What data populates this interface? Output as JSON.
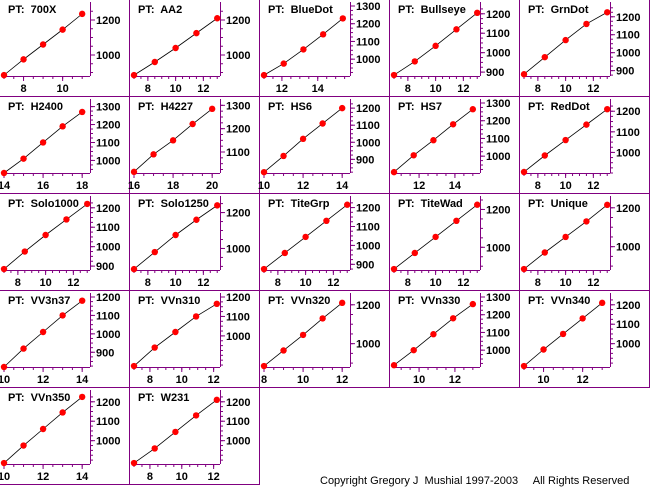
{
  "copyright": "Copyright Gregory J  Mushial 1997-2003     All Rights Reserved",
  "colors": {
    "divider": "#800080",
    "point": "#ff0000",
    "line": "#000000",
    "axis": "#800080",
    "text": "#000000"
  },
  "chart_data": [
    {
      "type": "line",
      "title": "PT:  700X",
      "xticks": [
        8,
        10
      ],
      "yticks": [
        1000,
        1200
      ],
      "xlim": [
        7,
        11.4
      ],
      "ylim": [
        880,
        1280
      ],
      "series": [
        {
          "x": [
            7,
            8,
            9,
            10,
            11
          ],
          "y": [
            885,
            975,
            1060,
            1145,
            1235
          ]
        }
      ]
    },
    {
      "type": "line",
      "title": "PT:  AA2",
      "xticks": [
        8,
        10,
        12
      ],
      "yticks": [
        1000,
        1200
      ],
      "xlim": [
        7,
        13.2
      ],
      "ylim": [
        880,
        1280
      ],
      "series": [
        {
          "x": [
            7,
            8.5,
            10,
            11.5,
            13
          ],
          "y": [
            885,
            960,
            1040,
            1125,
            1210
          ]
        }
      ]
    },
    {
      "type": "line",
      "title": "PT:  BlueDot",
      "xticks": [
        12,
        14
      ],
      "yticks": [
        1000,
        1100,
        1200,
        1300
      ],
      "xlim": [
        11,
        15.8
      ],
      "ylim": [
        905,
        1300
      ],
      "series": [
        {
          "x": [
            11,
            12.1,
            13.2,
            14.3,
            15.4
          ],
          "y": [
            910,
            975,
            1055,
            1140,
            1230
          ]
        }
      ]
    },
    {
      "type": "line",
      "title": "PT:  Bullseye",
      "xticks": [
        8,
        10,
        12
      ],
      "yticks": [
        900,
        1000,
        1100,
        1200
      ],
      "xlim": [
        7,
        13.2
      ],
      "ylim": [
        880,
        1240
      ],
      "series": [
        {
          "x": [
            7,
            8.5,
            10,
            11.5,
            13
          ],
          "y": [
            885,
            955,
            1035,
            1120,
            1205
          ]
        }
      ]
    },
    {
      "type": "line",
      "title": "PT:  GrnDot",
      "xticks": [
        8,
        10,
        12
      ],
      "yticks": [
        900,
        1000,
        1100,
        1200
      ],
      "xlim": [
        7,
        13.2
      ],
      "ylim": [
        870,
        1260
      ],
      "series": [
        {
          "x": [
            7,
            8.5,
            10,
            11.5,
            13
          ],
          "y": [
            880,
            975,
            1070,
            1160,
            1225
          ]
        }
      ]
    },
    {
      "type": "line",
      "title": "PT:  H2400",
      "xticks": [
        14,
        16,
        18
      ],
      "yticks": [
        1000,
        1100,
        1200,
        1300
      ],
      "xlim": [
        14,
        18.4
      ],
      "ylim": [
        930,
        1320
      ],
      "series": [
        {
          "x": [
            14,
            15,
            16,
            17,
            18
          ],
          "y": [
            930,
            1010,
            1100,
            1190,
            1270
          ]
        }
      ]
    },
    {
      "type": "line",
      "title": "PT:  H4227",
      "xticks": [
        16,
        18,
        20
      ],
      "yticks": [
        1100,
        1200,
        1300
      ],
      "xlim": [
        16,
        20.4
      ],
      "ylim": [
        1010,
        1310
      ],
      "series": [
        {
          "x": [
            16,
            17,
            18,
            19,
            20
          ],
          "y": [
            1015,
            1090,
            1150,
            1220,
            1285
          ]
        }
      ]
    },
    {
      "type": "line",
      "title": "PT:  HS6",
      "xticks": [
        10,
        12,
        14
      ],
      "yticks": [
        900,
        1000,
        1100,
        1200
      ],
      "xlim": [
        10,
        14.4
      ],
      "ylim": [
        820,
        1230
      ],
      "series": [
        {
          "x": [
            10,
            11,
            12,
            13,
            14
          ],
          "y": [
            825,
            920,
            1020,
            1110,
            1200
          ]
        }
      ]
    },
    {
      "type": "line",
      "title": "PT:  HS7",
      "xticks": [
        12,
        14
      ],
      "yticks": [
        1000,
        1100,
        1200,
        1300
      ],
      "xlim": [
        10.6,
        15.4
      ],
      "ylim": [
        905,
        1300
      ],
      "series": [
        {
          "x": [
            10.6,
            11.7,
            12.8,
            13.9,
            15
          ],
          "y": [
            910,
            1005,
            1090,
            1180,
            1265
          ]
        }
      ]
    },
    {
      "type": "line",
      "title": "PT:  RedDot",
      "xticks": [
        8,
        10,
        12
      ],
      "yticks": [
        1000,
        1100,
        1200
      ],
      "xlim": [
        7,
        13.2
      ],
      "ylim": [
        900,
        1240
      ],
      "series": [
        {
          "x": [
            7,
            8.5,
            10,
            11.5,
            13
          ],
          "y": [
            905,
            985,
            1060,
            1135,
            1210
          ]
        }
      ]
    },
    {
      "type": "line",
      "title": "PT:  Solo1000",
      "xticks": [
        8,
        10,
        12
      ],
      "yticks": [
        900,
        1000,
        1100,
        1200
      ],
      "xlim": [
        7,
        13.2
      ],
      "ylim": [
        880,
        1240
      ],
      "series": [
        {
          "x": [
            7,
            8.5,
            10,
            11.5,
            13
          ],
          "y": [
            885,
            975,
            1060,
            1140,
            1220
          ]
        }
      ]
    },
    {
      "type": "line",
      "title": "PT:  Solo1250",
      "xticks": [
        8,
        10,
        12
      ],
      "yticks": [
        1000,
        1200
      ],
      "xlim": [
        7,
        13.2
      ],
      "ylim": [
        880,
        1270
      ],
      "series": [
        {
          "x": [
            7,
            8.5,
            10,
            11.5,
            13
          ],
          "y": [
            885,
            980,
            1075,
            1160,
            1240
          ]
        }
      ]
    },
    {
      "type": "line",
      "title": "PT:  TiteGrp",
      "xticks": [
        8,
        10,
        12
      ],
      "yticks": [
        900,
        1000,
        1100,
        1200
      ],
      "xlim": [
        7,
        13.2
      ],
      "ylim": [
        870,
        1240
      ],
      "series": [
        {
          "x": [
            7,
            8.5,
            10,
            11.5,
            13
          ],
          "y": [
            875,
            960,
            1045,
            1130,
            1215
          ]
        }
      ]
    },
    {
      "type": "line",
      "title": "PT:  TiteWad",
      "xticks": [
        8,
        10,
        12
      ],
      "yticks": [
        1000,
        1200
      ],
      "xlim": [
        7,
        13.2
      ],
      "ylim": [
        880,
        1250
      ],
      "series": [
        {
          "x": [
            7,
            8.5,
            10,
            11.5,
            13
          ],
          "y": [
            885,
            970,
            1055,
            1140,
            1225
          ]
        }
      ]
    },
    {
      "type": "line",
      "title": "PT:  Unique",
      "xticks": [
        8,
        10,
        12
      ],
      "yticks": [
        1000,
        1200
      ],
      "xlim": [
        7,
        13.2
      ],
      "ylim": [
        880,
        1240
      ],
      "series": [
        {
          "x": [
            7,
            8.5,
            10,
            11.5,
            13
          ],
          "y": [
            885,
            970,
            1050,
            1130,
            1215
          ]
        }
      ]
    },
    {
      "type": "line",
      "title": "PT:  VV3n37",
      "xticks": [
        10,
        12,
        14
      ],
      "yticks": [
        900,
        1000,
        1100,
        1200
      ],
      "xlim": [
        10,
        14.4
      ],
      "ylim": [
        820,
        1200
      ],
      "series": [
        {
          "x": [
            10,
            11,
            12,
            13,
            14
          ],
          "y": [
            820,
            920,
            1010,
            1100,
            1180
          ]
        }
      ]
    },
    {
      "type": "line",
      "title": "PT:  VVn310",
      "xticks": [
        8,
        10,
        12
      ],
      "yticks": [
        1000,
        1100,
        1200
      ],
      "xlim": [
        7,
        12.4
      ],
      "ylim": [
        840,
        1200
      ],
      "series": [
        {
          "x": [
            7,
            8.3,
            9.6,
            10.9,
            12.2
          ],
          "y": [
            845,
            940,
            1020,
            1100,
            1165
          ]
        }
      ]
    },
    {
      "type": "line",
      "title": "PT:  VVn320",
      "xticks": [
        8,
        10,
        12
      ],
      "yticks": [
        1000,
        1200
      ],
      "xlim": [
        8,
        12.4
      ],
      "ylim": [
        880,
        1240
      ],
      "series": [
        {
          "x": [
            8,
            9,
            10,
            11,
            12
          ],
          "y": [
            885,
            965,
            1045,
            1130,
            1210
          ]
        }
      ]
    },
    {
      "type": "line",
      "title": "PT:  VVn330",
      "xticks": [
        10,
        12
      ],
      "yticks": [
        1000,
        1100,
        1200,
        1300
      ],
      "xlim": [
        8.6,
        13.4
      ],
      "ylim": [
        905,
        1300
      ],
      "series": [
        {
          "x": [
            8.6,
            9.7,
            10.8,
            11.9,
            13
          ],
          "y": [
            915,
            1000,
            1090,
            1180,
            1260
          ]
        }
      ]
    },
    {
      "type": "line",
      "title": "PT:  VVn340",
      "xticks": [
        10,
        12
      ],
      "yticks": [
        1000,
        1100,
        1200
      ],
      "xlim": [
        9,
        13.4
      ],
      "ylim": [
        880,
        1240
      ],
      "series": [
        {
          "x": [
            9,
            10,
            11,
            12,
            13
          ],
          "y": [
            885,
            970,
            1050,
            1130,
            1210
          ]
        }
      ]
    },
    {
      "type": "line",
      "title": "PT:  VVn350",
      "xticks": [
        10,
        12,
        14
      ],
      "yticks": [
        1000,
        1100,
        1200
      ],
      "xlim": [
        10,
        14.4
      ],
      "ylim": [
        880,
        1240
      ],
      "series": [
        {
          "x": [
            10,
            11,
            12,
            13,
            14
          ],
          "y": [
            885,
            975,
            1060,
            1145,
            1225
          ]
        }
      ]
    },
    {
      "type": "line",
      "title": "PT:  W231",
      "xticks": [
        8,
        10,
        12
      ],
      "yticks": [
        1000,
        1100,
        1200
      ],
      "xlim": [
        7,
        12.4
      ],
      "ylim": [
        880,
        1240
      ],
      "series": [
        {
          "x": [
            7,
            8.3,
            9.6,
            10.9,
            12.2
          ],
          "y": [
            885,
            960,
            1045,
            1130,
            1210
          ]
        }
      ]
    }
  ]
}
